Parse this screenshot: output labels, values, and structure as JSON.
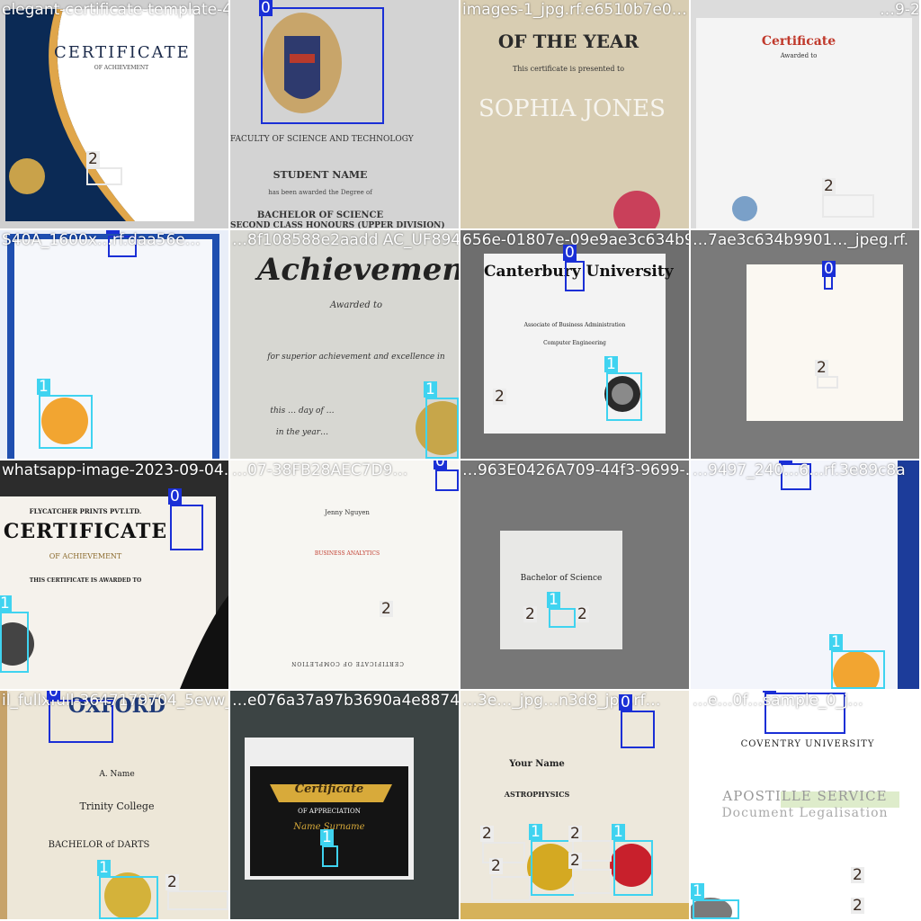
{
  "tiles": [
    {
      "filename": "elegant-certificate-template-46f7a0ea8-4847-8B87-6227images-1_jpg.rf.e6510b7e0…",
      "heading": "CERTIFICATE",
      "sub": "OF ACHIEVEMENT",
      "boxes": [
        {
          "cls": "2"
        }
      ]
    },
    {
      "filename": "S40A_1600x…_jpeg.rf.daa56e…",
      "heading": "FACULTY OF SCIENCE AND TECHNOLOGY",
      "sub": "STUDENT NAME",
      "line3": "has been awarded the Degree of",
      "line4": "BACHELOR OF SCIENCE",
      "line5": "SECOND CLASS HONOURS (UPPER DIVISION)",
      "boxes": [
        {
          "cls": "0"
        }
      ]
    },
    {
      "filename": "images-1_jpg.rf.e6510b7e0…",
      "heading": "OF THE YEAR",
      "sub": "This certificate is presented to",
      "line3": "SOPHIA JONES",
      "boxes": []
    },
    {
      "filename": "…9-20",
      "heading": "Certificate",
      "sub": "Awarded to",
      "boxes": [
        {
          "cls": "2"
        }
      ]
    },
    {
      "filename": "S40A_1600x…rf.daa56e…",
      "heading": "",
      "boxes": [
        {
          "cls": "0"
        },
        {
          "cls": "1"
        }
      ]
    },
    {
      "filename": "…8f108588e2aadd AC_UF894…",
      "heading": "Achievement",
      "sub": "Awarded to",
      "line3": "for superior achievement and excellence in",
      "line4": "this … day of …",
      "line5": "in the year…",
      "boxes": [
        {
          "cls": "1"
        }
      ]
    },
    {
      "filename": "656e-01807e-09e9ae3c634b99010eab545262ca2_jpeg.rf.",
      "heading": "Canterbury University",
      "sub": "Associate of Business Administration",
      "line3": "Computer Engineering",
      "boxes": [
        {
          "cls": "0"
        },
        {
          "cls": "1"
        },
        {
          "cls": "2"
        }
      ]
    },
    {
      "filename": "…7ae3c634b9901…_jpeg.rf.",
      "heading": "",
      "boxes": [
        {
          "cls": "0"
        },
        {
          "cls": "2"
        }
      ]
    },
    {
      "filename": "whatsapp-image-2023-09-04…",
      "heading": "CERTIFICATE",
      "top": "FLYCATCHER PRINTS PVT.LTD.",
      "sub": "OF ACHIEVEMENT",
      "line3": "THIS CERTIFICATE IS AWARDED TO",
      "boxes": [
        {
          "cls": "0"
        },
        {
          "cls": "1"
        }
      ]
    },
    {
      "filename": "…07-38FB28AEC7D9…",
      "heading": "Jenny Nguyen",
      "sub": "BUSINESS ANALYTICS",
      "line3": "CERTIFICATE OF COMPLETION",
      "boxes": [
        {
          "cls": "0"
        },
        {
          "cls": "2"
        }
      ]
    },
    {
      "filename": "…963E0426A709-44f3-9699-…",
      "heading": "Bachelor of Science",
      "boxes": [
        {
          "cls": "1"
        },
        {
          "cls": "2"
        },
        {
          "cls": "2"
        }
      ]
    },
    {
      "filename": "…9497_240…6…rf.3e89c8a",
      "heading": "",
      "boxes": [
        {
          "cls": "0"
        },
        {
          "cls": "1"
        }
      ]
    },
    {
      "filename": "il_fullxfull-3647179704_5evw_jpg.rf.6…",
      "heading": "OXFORD",
      "sub": "A. Name",
      "line3": "Trinity College",
      "line4": "BACHELOR of DARTS",
      "boxes": [
        {
          "cls": "0"
        },
        {
          "cls": "1"
        },
        {
          "cls": "2"
        }
      ]
    },
    {
      "filename": "…e076a37a97b3690a4e88744…",
      "heading": "Certificate",
      "sub": "OF APPRECIATION",
      "line3": "Name Surname",
      "boxes": [
        {
          "cls": "1"
        }
      ]
    },
    {
      "filename": "…3e…_jpg…n3d8_jpg.rf…",
      "heading": "Your Name",
      "sub": "ASTROPHYSICS",
      "boxes": [
        {
          "cls": "0"
        },
        {
          "cls": "1"
        },
        {
          "cls": "1"
        },
        {
          "cls": "2"
        },
        {
          "cls": "2"
        },
        {
          "cls": "2"
        },
        {
          "cls": "2"
        }
      ]
    },
    {
      "filename": "…e…0f…sample_0_j…",
      "heading": "COVENTRY UNIVERSITY",
      "sub": "APOSTILLE SERVICE",
      "line3": "Document Legalisation",
      "boxes": [
        {
          "cls": "0"
        },
        {
          "cls": "1"
        },
        {
          "cls": "2"
        },
        {
          "cls": "2"
        }
      ]
    }
  ],
  "legend": {
    "colors": {
      "c0": "#1a2fd6",
      "c1": "#3fd3f0",
      "c2": "#ececec"
    }
  }
}
